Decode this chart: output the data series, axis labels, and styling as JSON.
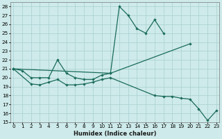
{
  "xlabel": "Humidex (Indice chaleur)",
  "background_color": "#ceeaea",
  "grid_color": "#a8d0d0",
  "line_color": "#1a6b5a",
  "ylim": [
    15,
    28.5
  ],
  "xlim": [
    -0.3,
    23.3
  ],
  "yticks": [
    15,
    16,
    17,
    18,
    19,
    20,
    21,
    22,
    23,
    24,
    25,
    26,
    27,
    28
  ],
  "xticks": [
    0,
    1,
    2,
    3,
    4,
    5,
    6,
    7,
    8,
    9,
    10,
    11,
    12,
    13,
    14,
    15,
    16,
    17,
    18,
    19,
    20,
    21,
    22,
    23
  ],
  "line1_x": [
    0,
    1,
    2,
    3,
    4,
    5,
    6,
    7,
    8,
    9,
    10,
    11,
    12,
    13,
    14,
    15,
    16,
    17
  ],
  "line1_y": [
    21,
    20.8,
    20.0,
    20.0,
    20.0,
    22.0,
    20.5,
    20.0,
    19.8,
    19.8,
    20.3,
    20.5,
    28.0,
    27.0,
    25.5,
    25.0,
    26.5,
    25.0
  ],
  "line2_x": [
    0,
    11,
    20
  ],
  "line2_y": [
    21.0,
    20.5,
    23.8
  ],
  "line3_x": [
    0,
    2,
    3,
    4,
    5,
    6,
    7,
    8,
    9,
    10,
    11,
    16,
    17,
    18,
    19,
    20,
    21,
    22,
    23
  ],
  "line3_y": [
    21.0,
    19.3,
    19.2,
    19.5,
    19.8,
    19.2,
    19.2,
    19.3,
    19.5,
    19.8,
    20.0,
    18.0,
    17.9,
    17.9,
    17.7,
    17.6,
    16.5,
    15.2,
    16.3
  ]
}
